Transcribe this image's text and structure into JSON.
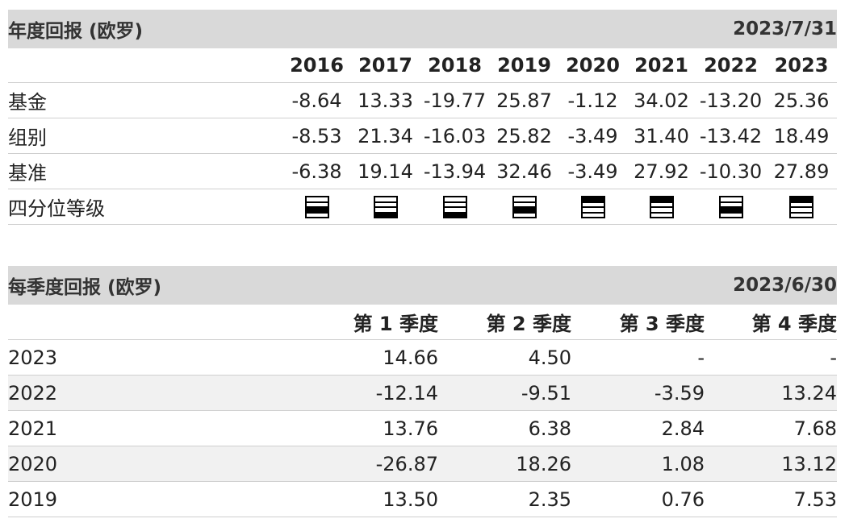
{
  "annual": {
    "title": "年度回报 (欧罗)",
    "date": "2023/7/31",
    "years": [
      "2016",
      "2017",
      "2018",
      "2019",
      "2020",
      "2021",
      "2022",
      "2023"
    ],
    "rows": [
      {
        "label": "基金",
        "values": [
          "-8.64",
          "13.33",
          "-19.77",
          "25.87",
          "-1.12",
          "34.02",
          "-13.20",
          "25.36"
        ]
      },
      {
        "label": "组别",
        "values": [
          "-8.53",
          "21.34",
          "-16.03",
          "25.82",
          "-3.49",
          "31.40",
          "-13.42",
          "18.49"
        ]
      },
      {
        "label": "基准",
        "values": [
          "-6.38",
          "19.14",
          "-13.94",
          "32.46",
          "-3.49",
          "27.92",
          "-10.30",
          "27.89"
        ]
      }
    ],
    "quartile_label": "四分位等级",
    "quartiles": [
      3,
      4,
      4,
      3,
      1,
      1,
      3,
      1
    ]
  },
  "quarterly": {
    "title": "每季度回报 (欧罗)",
    "date": "2023/6/30",
    "headers": [
      "第 1 季度",
      "第 2 季度",
      "第 3 季度",
      "第 4 季度"
    ],
    "rows": [
      {
        "year": "2023",
        "values": [
          "14.66",
          "4.50",
          "-",
          "-"
        ]
      },
      {
        "year": "2022",
        "values": [
          "-12.14",
          "-9.51",
          "-3.59",
          "13.24"
        ]
      },
      {
        "year": "2021",
        "values": [
          "13.76",
          "6.38",
          "2.84",
          "7.68"
        ]
      },
      {
        "year": "2020",
        "values": [
          "-26.87",
          "18.26",
          "1.08",
          "13.12"
        ]
      },
      {
        "year": "2019",
        "values": [
          "13.50",
          "2.35",
          "0.76",
          "7.53"
        ]
      }
    ]
  }
}
